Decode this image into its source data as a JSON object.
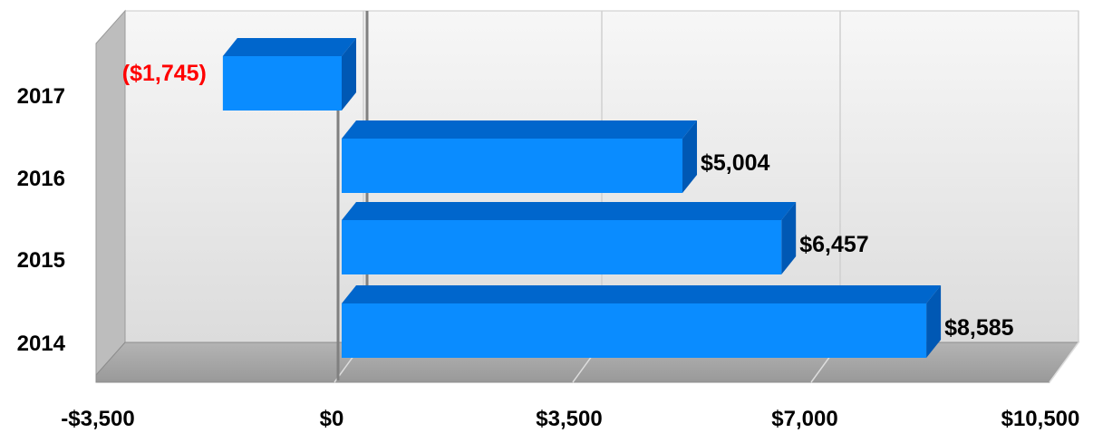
{
  "chart_data": {
    "type": "bar",
    "orientation": "horizontal",
    "style": "3d",
    "categories": [
      "2014",
      "2015",
      "2016",
      "2017"
    ],
    "values": [
      8585,
      6457,
      5004,
      -1745
    ],
    "data_labels": [
      "$8,585",
      "$6,457",
      "$5,004",
      "($1,745)"
    ],
    "xlim": [
      -3500,
      10500
    ],
    "x_ticks": [
      -3500,
      0,
      3500,
      7000,
      10500
    ],
    "x_tick_labels": [
      "-$3,500",
      "$0",
      "$3,500",
      "$7,000",
      "$10,500"
    ],
    "title": "",
    "xlabel": "",
    "ylabel": "",
    "grid": true,
    "legend": "none",
    "colors": {
      "bar_front": "#0a8cff",
      "bar_top": "#0066cc",
      "bar_side": "#0058b4",
      "negative_label": "#ff0000",
      "positive_label": "#000000",
      "floor": "#a6a6a6",
      "wall": "#ececec",
      "zero_line": "#808080"
    }
  }
}
